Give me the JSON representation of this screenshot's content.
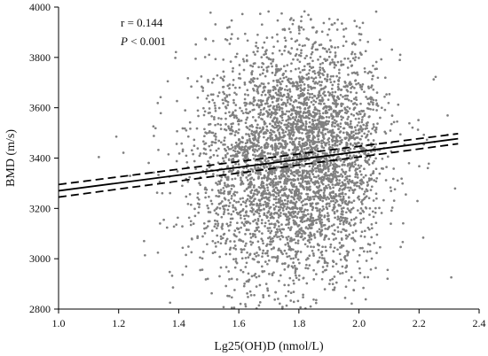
{
  "chart_data": {
    "type": "scatter",
    "title": "",
    "xlabel": "Lg25(OH)D (nmol/L)",
    "ylabel": "BMD (m/s)",
    "xlim": [
      1.0,
      2.4
    ],
    "ylim": [
      2800,
      4000
    ],
    "x_ticks": [
      1.0,
      1.2,
      1.4,
      1.6,
      1.8,
      2.0,
      2.2,
      2.4
    ],
    "x_tick_labels": [
      "1.0",
      "1.2",
      "1.4",
      "1.6",
      "1.8",
      "2.0",
      "2.2",
      "2.4"
    ],
    "y_ticks": [
      2800,
      3000,
      3200,
      3400,
      3600,
      3800,
      4000
    ],
    "y_tick_labels": [
      "2800",
      "3000",
      "3200",
      "3400",
      "3600",
      "3800",
      "4000"
    ],
    "grid": false,
    "legend": "none",
    "annotations": {
      "r_text": "r = 0.144",
      "p_symbol": "P",
      "p_rest": " < 0.001"
    },
    "regression": {
      "fit_line": {
        "x": [
          1.0,
          2.33
        ],
        "y": [
          3270,
          3477
        ]
      },
      "ci_upper": {
        "x": [
          1.0,
          2.33
        ],
        "y": [
          3295,
          3497
        ]
      },
      "ci_lower": {
        "x": [
          1.0,
          2.33
        ],
        "y": [
          3245,
          3457
        ]
      }
    },
    "point_cloud": {
      "n_points": 4200,
      "x_mean": 1.8,
      "x_sd": 0.17,
      "x_range": [
        1.0,
        2.34
      ],
      "y_mean": 3390,
      "y_sd": 240,
      "y_range": [
        2800,
        3985
      ],
      "point_color": "#808080"
    },
    "colors": {
      "points": "#808080",
      "lines": "#000000",
      "axes": "#000000"
    }
  }
}
